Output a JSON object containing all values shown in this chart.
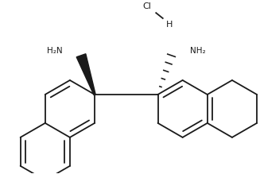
{
  "bg_color": "#ffffff",
  "line_color": "#1a1a1a",
  "line_width": 1.3,
  "text_color": "#1a1a1a",
  "Cl_label": "Cl",
  "H_label": "H",
  "NH2_left": "H₂N",
  "NH2_right": "NH₂",
  "figsize": [
    3.27,
    2.19
  ],
  "dpi": 100
}
